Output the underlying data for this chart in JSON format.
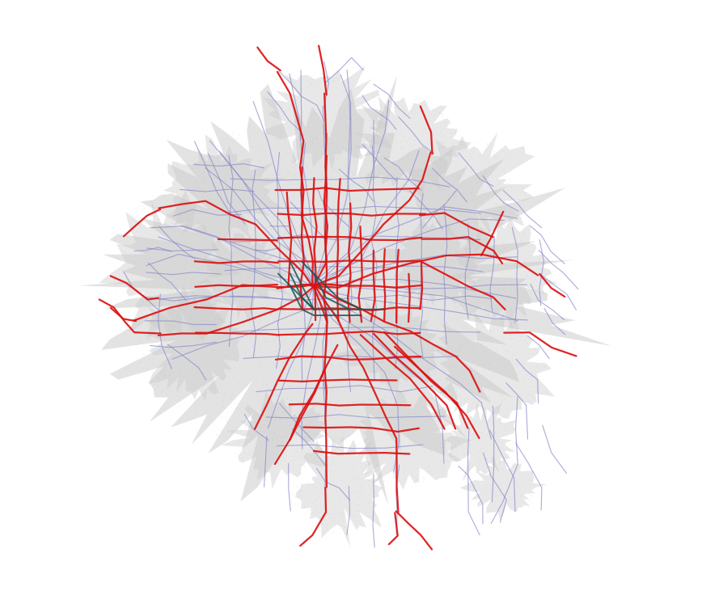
{
  "background_color": "#ffffff",
  "urban_area_color": "#cccccc",
  "bus_color": "#8888cc",
  "train_color": "#dd1111",
  "tram_color": "#1a5555",
  "figsize": [
    8.94,
    7.36
  ],
  "dpi": 100,
  "seed": 42,
  "bus_lw": 0.8,
  "train_lw": 1.6,
  "tram_lw": 1.4
}
